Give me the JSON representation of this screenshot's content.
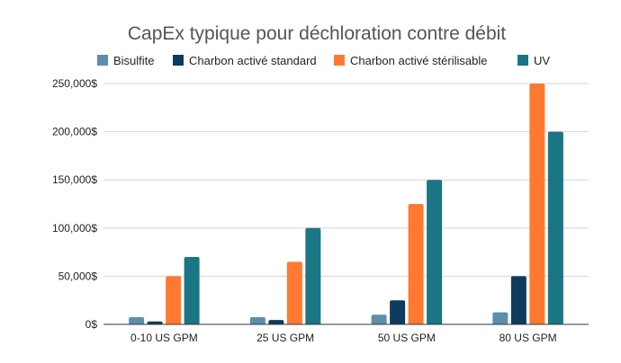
{
  "chart_data": {
    "type": "bar",
    "title": "CapEx typique pour déchloration contre débit",
    "xlabel": "",
    "ylabel": "",
    "categories": [
      "0-10 US GPM",
      "25 US GPM",
      "50 US GPM",
      "80 US GPM"
    ],
    "series": [
      {
        "name": "Bisulfite",
        "color": "#5b8fac",
        "values": [
          7500,
          7500,
          10000,
          12500
        ]
      },
      {
        "name": "Charbon activé standard",
        "color": "#0d3c5c",
        "values": [
          3000,
          4500,
          25000,
          50000
        ]
      },
      {
        "name": "Charbon activé stérilisable",
        "color": "#ff7a30",
        "values": [
          50000,
          65000,
          125000,
          250000
        ]
      },
      {
        "name": "UV",
        "color": "#1a7585",
        "values": [
          70000,
          100000,
          150000,
          200000
        ]
      }
    ],
    "ylim": [
      0,
      250000
    ],
    "yticks": [
      0,
      50000,
      100000,
      150000,
      200000,
      250000
    ],
    "ytick_labels": [
      "0$",
      "50,000$",
      "100,000$",
      "150,000$",
      "200,000$",
      "250,000$"
    ],
    "grid": true,
    "legend_position": "top"
  }
}
